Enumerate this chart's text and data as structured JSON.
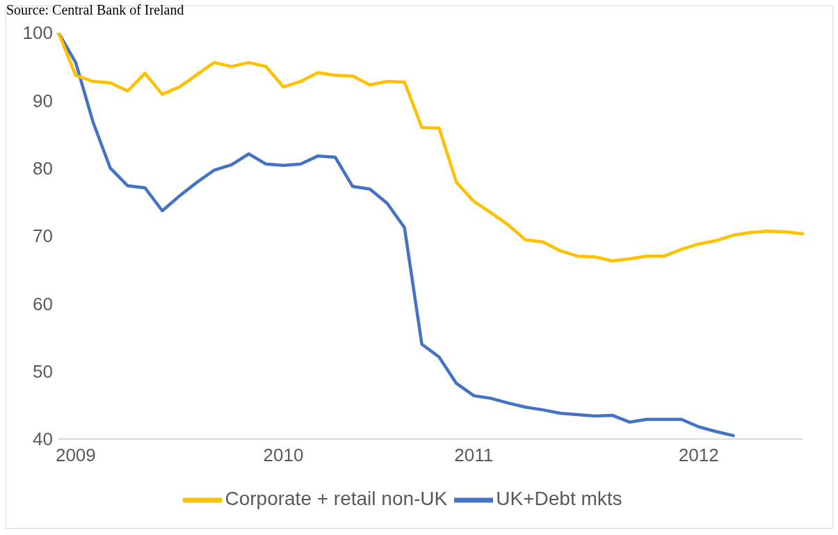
{
  "chart_data": {
    "type": "line",
    "annotations": [
      "Source: Central Bank of Ireland"
    ],
    "categories": [
      null,
      "2009",
      null,
      null,
      null,
      null,
      null,
      null,
      null,
      null,
      null,
      null,
      null,
      "2010",
      null,
      null,
      null,
      null,
      null,
      null,
      null,
      null,
      null,
      null,
      "2011",
      null,
      null,
      null,
      null,
      null,
      null,
      null,
      null,
      null,
      null,
      null,
      null,
      "2012",
      null,
      null,
      null,
      null,
      null,
      null
    ],
    "series": [
      {
        "name": "UK+Debt mkts",
        "color": "#4472c4",
        "values": [
          100,
          95.6,
          86.8,
          80.0,
          77.4,
          77.1,
          73.7,
          75.9,
          77.9,
          79.7,
          80.5,
          82.1,
          80.6,
          80.4,
          80.6,
          81.8,
          81.6,
          77.3,
          76.9,
          74.8,
          71.2,
          54.0,
          52.1,
          48.2,
          46.4,
          46.0,
          45.3,
          44.7,
          44.3,
          43.8,
          43.6,
          43.4,
          43.5,
          42.5,
          42.9,
          42.9,
          42.9,
          41.8,
          41.1,
          40.5,
          null,
          null,
          null,
          null
        ]
      },
      {
        "name": "Corporate + retail non-UK",
        "color": "#ffc000",
        "values": [
          100,
          93.7,
          92.8,
          92.6,
          91.4,
          94.0,
          90.9,
          92.0,
          93.8,
          95.6,
          95.0,
          95.6,
          95.0,
          92.0,
          92.8,
          94.1,
          93.7,
          93.6,
          92.3,
          92.8,
          92.7,
          86.0,
          85.9,
          77.9,
          75.1,
          73.4,
          71.6,
          69.4,
          69.1,
          67.8,
          67.0,
          66.9,
          66.3,
          66.6,
          67.0,
          67.0,
          68.0,
          68.8,
          69.3,
          70.1,
          70.5,
          70.7,
          70.6,
          70.3
        ]
      }
    ],
    "ylim": [
      40,
      100
    ],
    "yticks": [
      40,
      50,
      60,
      70,
      80,
      90,
      100
    ],
    "grid": false,
    "legend": "bottom",
    "marker": "none",
    "line_style": "solid"
  }
}
